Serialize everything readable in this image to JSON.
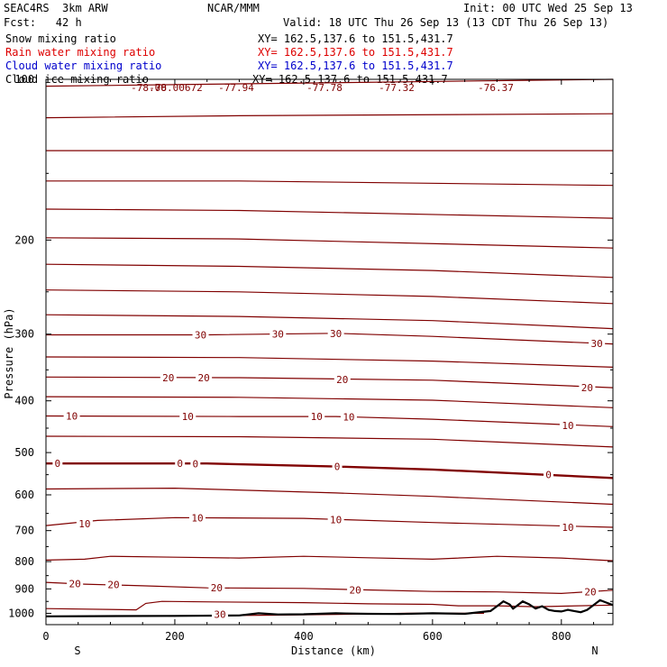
{
  "header": {
    "model": "SEAC4RS  3km ARW",
    "org": "NCAR/MMM",
    "init": "Init: 00 UTC Wed 25 Sep 13",
    "fcst": "Fcst:   42 h",
    "valid": "Valid: 18 UTC Thu 26 Sep 13 (13 CDT Thu 26 Sep 13)"
  },
  "fields": [
    {
      "name": "Snow mixing ratio",
      "xy": "XY= 162.5,137.6 to 151.5,431.7",
      "color": "#000000"
    },
    {
      "name": "Rain water mixing ratio",
      "xy": "XY= 162.5,137.6 to 151.5,431.7",
      "color": "#dd0000"
    },
    {
      "name": "Cloud water mixing ratio",
      "xy": "XY= 162.5,137.6 to 151.5,431.7",
      "color": "#0000cc"
    },
    {
      "name": "Cloud ice mixing ratio",
      "xy": "XY= 162.5,137.6 to 151.5,431.7",
      "color": "#000000"
    }
  ],
  "chart_data": {
    "type": "line",
    "xlabel": "Distance (km)",
    "ylabel": "Pressure (hPa)",
    "xlim": [
      0,
      880
    ],
    "ylim": [
      1050,
      100
    ],
    "y_scale": "log",
    "x_ticks": [
      0,
      200,
      400,
      600,
      800
    ],
    "y_ticks": [
      100,
      200,
      300,
      400,
      500,
      600,
      700,
      800,
      900,
      1000
    ],
    "x_tick_labels": [
      "0",
      "200",
      "400",
      "600",
      "800"
    ],
    "y_tick_labels": [
      "100",
      "200",
      "300",
      "400",
      "500",
      "600",
      "700",
      "800",
      "900",
      "1000"
    ],
    "endpoints": {
      "left": "S",
      "right": "N"
    },
    "contour_color": "#800000",
    "zero_contour_color": "#800000",
    "terrain_color": "#000000",
    "top_labels": [
      "-78.00",
      "-78.00672",
      "-77.94",
      "-77.78",
      "-77.32",
      "-76.37"
    ],
    "contours": [
      {
        "level": null,
        "pts": [
          [
            0,
            103
          ],
          [
            880,
            100
          ]
        ]
      },
      {
        "level": null,
        "pts": [
          [
            0,
            118
          ],
          [
            300,
            117
          ],
          [
            880,
            116
          ]
        ]
      },
      {
        "level": null,
        "pts": [
          [
            0,
            136
          ],
          [
            880,
            136
          ]
        ]
      },
      {
        "level": null,
        "pts": [
          [
            0,
            155
          ],
          [
            300,
            155
          ],
          [
            880,
            158
          ]
        ]
      },
      {
        "level": null,
        "pts": [
          [
            0,
            175
          ],
          [
            300,
            176
          ],
          [
            880,
            182
          ]
        ]
      },
      {
        "level": null,
        "pts": [
          [
            0,
            198
          ],
          [
            300,
            199
          ],
          [
            880,
            207
          ]
        ]
      },
      {
        "level": null,
        "pts": [
          [
            0,
            222
          ],
          [
            300,
            224
          ],
          [
            600,
            228
          ],
          [
            880,
            235
          ]
        ]
      },
      {
        "level": null,
        "pts": [
          [
            0,
            248
          ],
          [
            300,
            250
          ],
          [
            600,
            255
          ],
          [
            880,
            263
          ]
        ]
      },
      {
        "level": null,
        "pts": [
          [
            0,
            276
          ],
          [
            300,
            278
          ],
          [
            600,
            283
          ],
          [
            880,
            293
          ]
        ]
      },
      {
        "level": -30,
        "pts": [
          [
            0,
            301
          ],
          [
            250,
            301
          ],
          [
            450,
            299
          ],
          [
            600,
            303
          ],
          [
            880,
            313
          ]
        ]
      },
      {
        "level": null,
        "pts": [
          [
            0,
            331
          ],
          [
            300,
            332
          ],
          [
            600,
            337
          ],
          [
            880,
            346
          ]
        ]
      },
      {
        "level": -20,
        "pts": [
          [
            0,
            361
          ],
          [
            300,
            362
          ],
          [
            600,
            366
          ],
          [
            880,
            378
          ]
        ]
      },
      {
        "level": null,
        "pts": [
          [
            0,
            393
          ],
          [
            300,
            394
          ],
          [
            600,
            399
          ],
          [
            880,
            412
          ]
        ]
      },
      {
        "level": -10,
        "pts": [
          [
            0,
            427
          ],
          [
            300,
            428
          ],
          [
            450,
            428
          ],
          [
            600,
            433
          ],
          [
            880,
            447
          ]
        ]
      },
      {
        "level": null,
        "pts": [
          [
            0,
            466
          ],
          [
            300,
            467
          ],
          [
            600,
            472
          ],
          [
            880,
            488
          ]
        ]
      },
      {
        "level": 0,
        "pts": [
          [
            0,
            524
          ],
          [
            250,
            524
          ],
          [
            450,
            531
          ],
          [
            600,
            538
          ],
          [
            880,
            558
          ]
        ]
      },
      {
        "level": null,
        "pts": [
          [
            0,
            585
          ],
          [
            200,
            583
          ],
          [
            450,
            595
          ],
          [
            600,
            604
          ],
          [
            880,
            625
          ]
        ]
      },
      {
        "level": 10,
        "pts": [
          [
            0,
            685
          ],
          [
            80,
            670
          ],
          [
            200,
            662
          ],
          [
            400,
            664
          ],
          [
            600,
            676
          ],
          [
            880,
            690
          ]
        ]
      },
      {
        "level": null,
        "pts": [
          [
            0,
            795
          ],
          [
            60,
            792
          ],
          [
            100,
            782
          ],
          [
            200,
            785
          ],
          [
            300,
            788
          ],
          [
            400,
            782
          ],
          [
            500,
            787
          ],
          [
            600,
            792
          ],
          [
            700,
            782
          ],
          [
            800,
            788
          ],
          [
            880,
            797
          ]
        ]
      },
      {
        "level": 20,
        "pts": [
          [
            0,
            875
          ],
          [
            60,
            882
          ],
          [
            150,
            888
          ],
          [
            250,
            896
          ],
          [
            400,
            898
          ],
          [
            500,
            904
          ],
          [
            600,
            910
          ],
          [
            700,
            912
          ],
          [
            800,
            918
          ],
          [
            880,
            905
          ]
        ]
      },
      {
        "level": null,
        "pts": [
          [
            0,
            980
          ],
          [
            140,
            985
          ],
          [
            155,
            958
          ],
          [
            180,
            950
          ],
          [
            260,
            952
          ],
          [
            400,
            955
          ],
          [
            500,
            960
          ],
          [
            600,
            962
          ],
          [
            640,
            968
          ],
          [
            700,
            968
          ],
          [
            760,
            972
          ],
          [
            880,
            965
          ]
        ]
      },
      {
        "level": 30,
        "pts": [
          [
            190,
            1012
          ],
          [
            350,
            1008
          ],
          [
            450,
            1005
          ],
          [
            560,
            1000
          ],
          [
            680,
            1000
          ]
        ]
      }
    ],
    "terrain": [
      [
        0,
        1013
      ],
      [
        200,
        1011
      ],
      [
        300,
        1009
      ],
      [
        330,
        1000
      ],
      [
        360,
        1005
      ],
      [
        400,
        1004
      ],
      [
        450,
        1000
      ],
      [
        500,
        1002
      ],
      [
        550,
        1003
      ],
      [
        600,
        1000
      ],
      [
        650,
        1002
      ],
      [
        690,
        990
      ],
      [
        700,
        970
      ],
      [
        710,
        950
      ],
      [
        720,
        963
      ],
      [
        725,
        980
      ],
      [
        730,
        970
      ],
      [
        740,
        950
      ],
      [
        750,
        962
      ],
      [
        760,
        980
      ],
      [
        770,
        970
      ],
      [
        780,
        985
      ],
      [
        790,
        990
      ],
      [
        800,
        992
      ],
      [
        810,
        985
      ],
      [
        820,
        990
      ],
      [
        830,
        995
      ],
      [
        840,
        985
      ],
      [
        850,
        965
      ],
      [
        860,
        945
      ],
      [
        870,
        955
      ],
      [
        880,
        965
      ]
    ],
    "contour_labels": [
      {
        "text": "0",
        "x": 18,
        "p": 524
      },
      {
        "text": "0",
        "x": 208,
        "p": 524
      },
      {
        "text": "0",
        "x": 232,
        "p": 525
      },
      {
        "text": "0",
        "x": 452,
        "p": 531
      },
      {
        "text": "0",
        "x": 780,
        "p": 550
      },
      {
        "text": "10",
        "x": 60,
        "p": 680
      },
      {
        "text": "10",
        "x": 235,
        "p": 662
      },
      {
        "text": "10",
        "x": 450,
        "p": 668
      },
      {
        "text": "10",
        "x": 810,
        "p": 690
      },
      {
        "text": "10",
        "x": 40,
        "p": 427
      },
      {
        "text": "10",
        "x": 220,
        "p": 428
      },
      {
        "text": "10",
        "x": 420,
        "p": 428
      },
      {
        "text": "10",
        "x": 470,
        "p": 429
      },
      {
        "text": "10",
        "x": 810,
        "p": 445
      },
      {
        "text": "20",
        "x": 190,
        "p": 362
      },
      {
        "text": "20",
        "x": 245,
        "p": 362
      },
      {
        "text": "20",
        "x": 460,
        "p": 365
      },
      {
        "text": "20",
        "x": 840,
        "p": 378
      },
      {
        "text": "30",
        "x": 240,
        "p": 301
      },
      {
        "text": "30",
        "x": 360,
        "p": 300
      },
      {
        "text": "30",
        "x": 450,
        "p": 299
      },
      {
        "text": "30",
        "x": 855,
        "p": 312
      },
      {
        "text": "20",
        "x": 45,
        "p": 880
      },
      {
        "text": "20",
        "x": 105,
        "p": 884
      },
      {
        "text": "20",
        "x": 265,
        "p": 896
      },
      {
        "text": "20",
        "x": 480,
        "p": 904
      },
      {
        "text": "20",
        "x": 845,
        "p": 912
      },
      {
        "text": "30",
        "x": 270,
        "p": 1004
      }
    ]
  }
}
